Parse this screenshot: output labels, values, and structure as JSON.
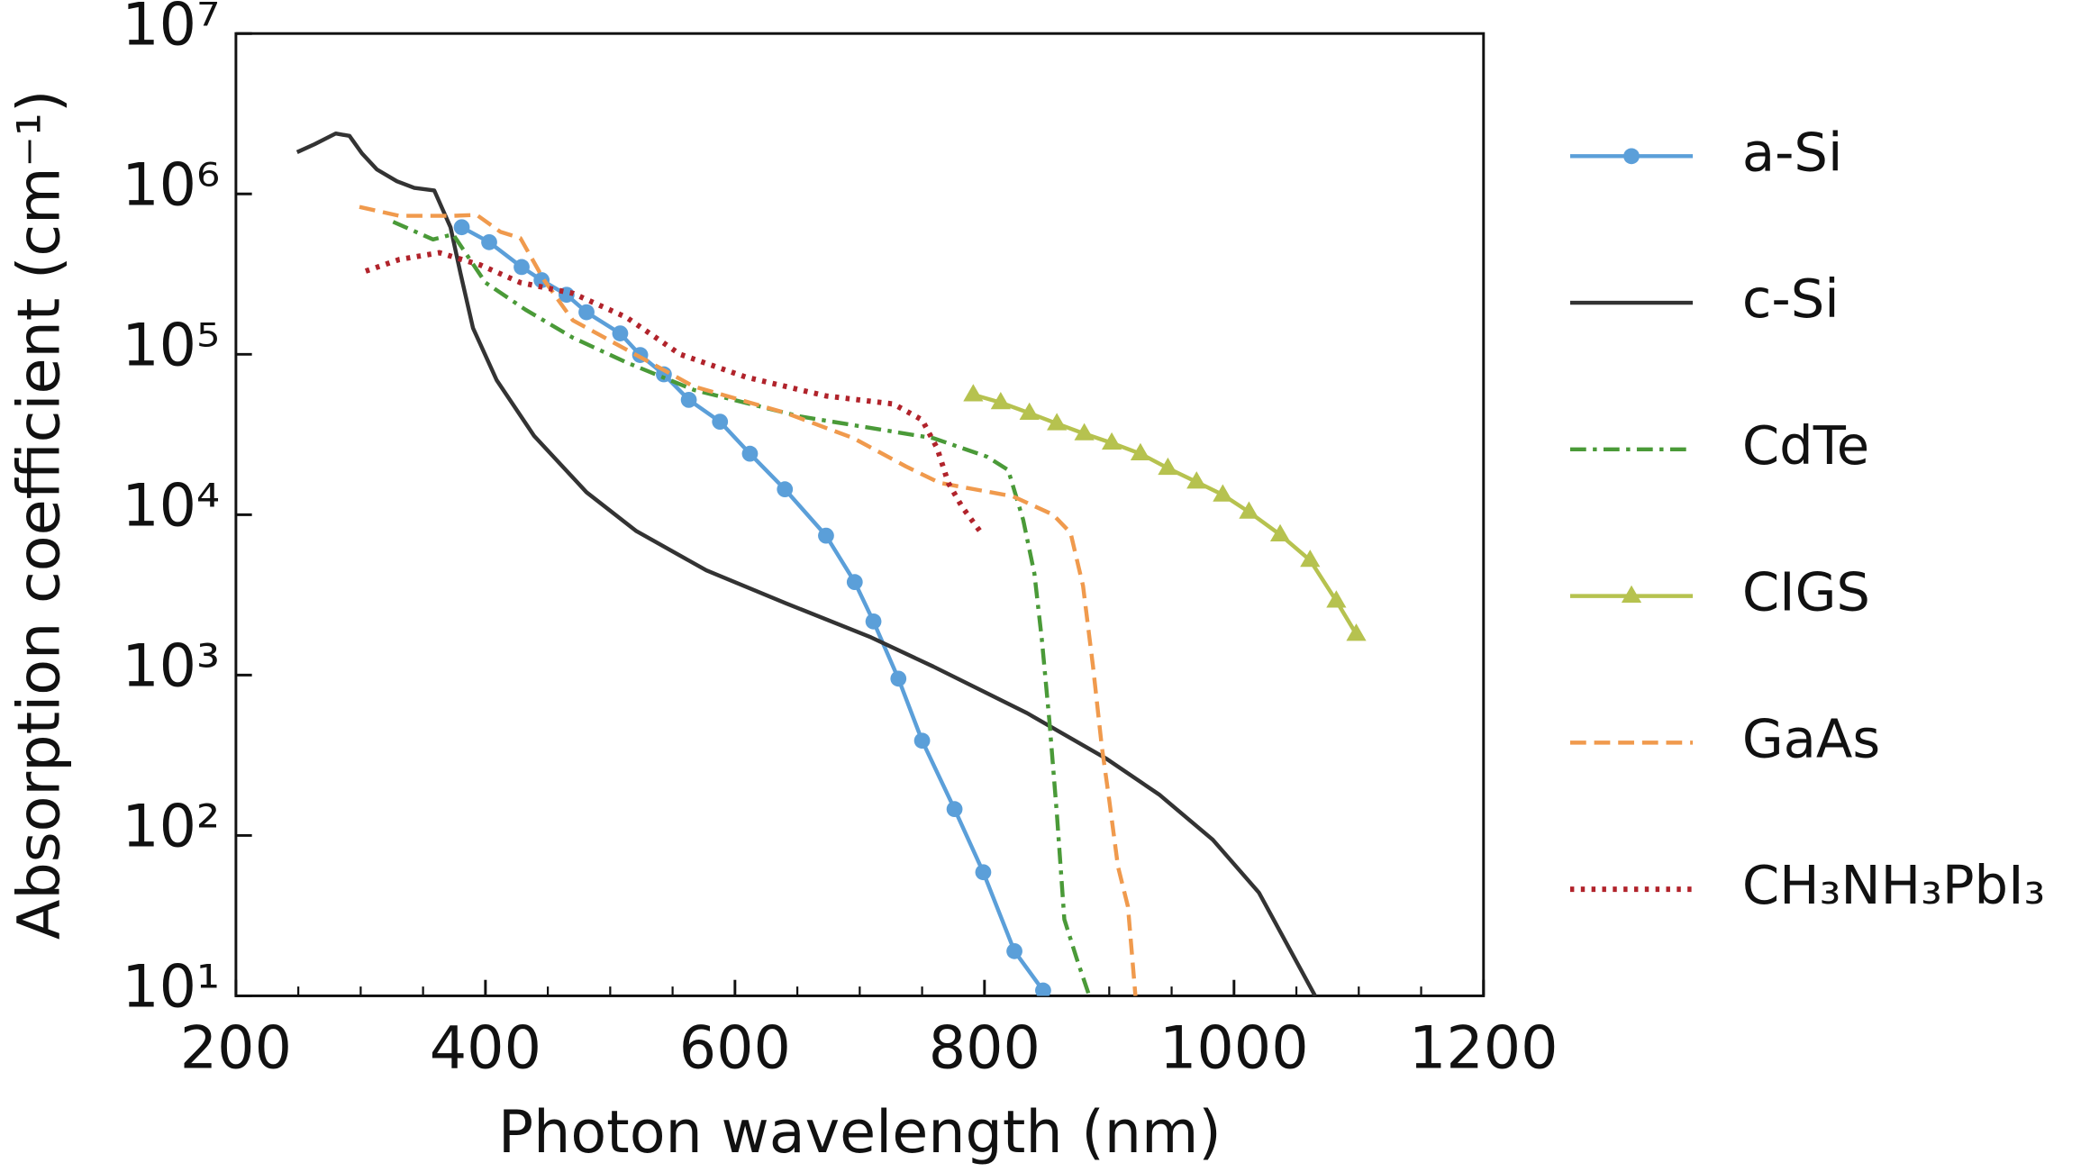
{
  "chart_data": {
    "type": "line",
    "xlabel": "Photon wavelength (nm)",
    "ylabel": "Absorption coefficient (cm⁻¹)",
    "xlim": [
      200,
      1200
    ],
    "xticks": [
      200,
      400,
      600,
      800,
      1000,
      1200
    ],
    "xminorticks": [
      250,
      300,
      350,
      450,
      500,
      550,
      650,
      700,
      750,
      850,
      900,
      950,
      1050,
      1100,
      1150
    ],
    "ylim": [
      10,
      10000000
    ],
    "yscale": "log",
    "yticks": [
      {
        "value": 10,
        "label": "10¹"
      },
      {
        "value": 100,
        "label": "10²"
      },
      {
        "value": 1000,
        "label": "10³"
      },
      {
        "value": 10000,
        "label": "10⁴"
      },
      {
        "value": 100000,
        "label": "10⁵"
      },
      {
        "value": 1000000,
        "label": "10⁶"
      },
      {
        "value": 10000000,
        "label": "10⁷"
      }
    ],
    "grid": false,
    "legend": "outside-right",
    "series": [
      {
        "name": "a-Si",
        "color": "#5b9fd9",
        "style": "solid",
        "marker": "circle",
        "x": [
          381,
          403,
          429,
          445,
          465,
          481,
          508,
          524,
          543,
          563,
          588,
          612,
          640,
          673,
          696,
          711,
          731,
          750,
          776,
          799,
          824,
          847
        ],
        "values": [
          620000,
          500000,
          350000,
          290000,
          235000,
          183000,
          135000,
          99000,
          75000,
          52000,
          38000,
          24000,
          14400,
          7400,
          3800,
          2160,
          950,
          390,
          146,
          59,
          19,
          10.8
        ]
      },
      {
        "name": "c-Si",
        "color": "#333333",
        "style": "solid",
        "marker": "none",
        "x": [
          249,
          263,
          280,
          291,
          301,
          313,
          329,
          343,
          359,
          372,
          380,
          390,
          409,
          439,
          481,
          521,
          577,
          641,
          709,
          759,
          834,
          898,
          940,
          983,
          1020,
          1065
        ],
        "values": [
          1820000,
          2040000,
          2380000,
          2300000,
          1790000,
          1420000,
          1200000,
          1090000,
          1050000,
          620000,
          320000,
          146000,
          69000,
          31000,
          13800,
          7900,
          4500,
          2800,
          1720,
          1130,
          580,
          300,
          180,
          94,
          44,
          10
        ]
      },
      {
        "name": "CdTe",
        "color": "#4a9a38",
        "style": "dashdot",
        "marker": "none",
        "x": [
          326,
          358,
          374,
          400,
          432,
          470,
          513,
          567,
          652,
          759,
          802,
          819,
          831,
          840,
          846,
          852,
          858,
          864,
          874,
          884
        ],
        "values": [
          670000,
          520000,
          560000,
          280000,
          190000,
          127000,
          89000,
          60000,
          41000,
          30000,
          23000,
          19000,
          9300,
          4300,
          1660,
          520,
          137,
          30,
          17,
          10
        ]
      },
      {
        "name": "CIGS",
        "color": "#b6c24f",
        "style": "solid",
        "marker": "triangle",
        "x": [
          791,
          813,
          836,
          858,
          880,
          902,
          925,
          947,
          970,
          991,
          1012,
          1037,
          1061,
          1082,
          1098
        ],
        "values": [
          56000,
          50000,
          43000,
          37000,
          32000,
          28000,
          24000,
          19500,
          16000,
          13300,
          10400,
          7500,
          5200,
          2900,
          1800
        ]
      },
      {
        "name": "GaAs",
        "color": "#f09a4d",
        "style": "dashed",
        "marker": "none",
        "x": [
          299,
          331,
          374,
          393,
          412,
          428,
          447,
          470,
          513,
          567,
          641,
          695,
          737,
          764,
          823,
          855,
          869,
          879,
          887,
          894,
          900,
          907,
          915,
          921
        ],
        "values": [
          830000,
          730000,
          730000,
          740000,
          580000,
          530000,
          290000,
          163000,
          107000,
          63000,
          43000,
          30000,
          20000,
          15800,
          13000,
          10000,
          7700,
          3600,
          1130,
          360,
          166,
          64,
          36,
          10
        ]
      },
      {
        "name": "CH₃NH₃PbI₃",
        "color": "#b1232b",
        "style": "dotted",
        "marker": "none",
        "x": [
          304,
          331,
          363,
          396,
          428,
          470,
          513,
          556,
          609,
          673,
          727,
          750,
          762,
          771,
          782,
          799
        ],
        "values": [
          330000,
          390000,
          430000,
          360000,
          280000,
          240000,
          170000,
          100000,
          72000,
          55000,
          49000,
          39000,
          26000,
          15800,
          11200,
          7400
        ]
      }
    ]
  }
}
